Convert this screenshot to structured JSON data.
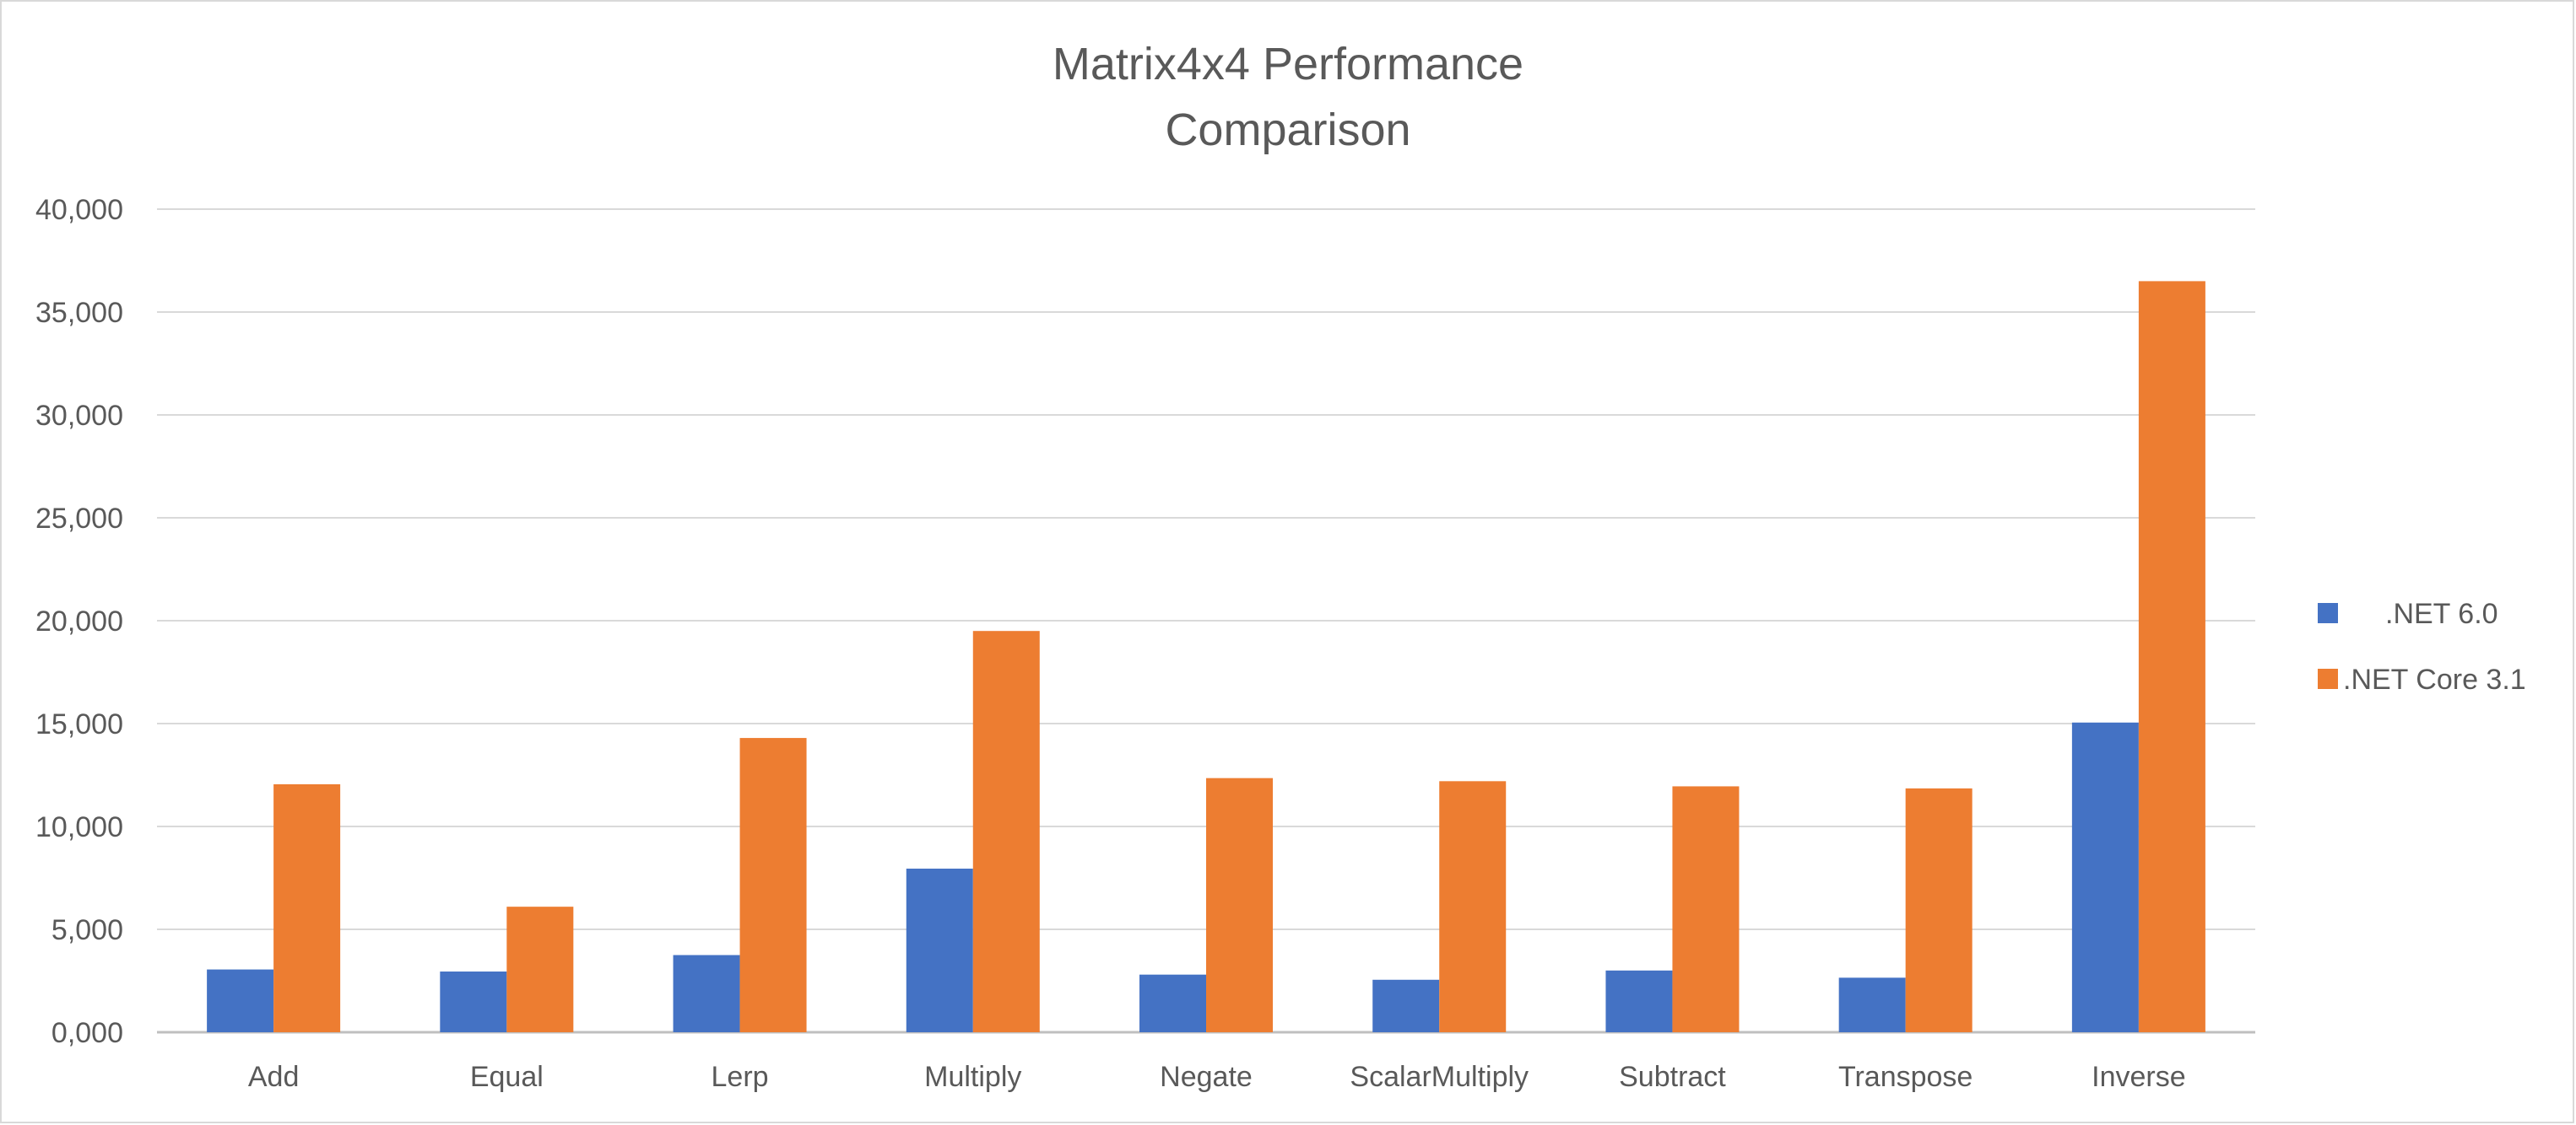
{
  "chart_data": {
    "type": "bar",
    "title_lines": [
      "Matrix4x4 Performance",
      "Comparison"
    ],
    "xlabel": "",
    "ylabel": "",
    "categories": [
      "Add",
      "Equal",
      "Lerp",
      "Multiply",
      "Negate",
      "ScalarMultiply",
      "Subtract",
      "Transpose",
      "Inverse"
    ],
    "series": [
      {
        "name": ".NET 6.0",
        "color": "#4472C4",
        "values": [
          3050,
          2950,
          3750,
          7950,
          2800,
          2550,
          3000,
          2650,
          15050
        ]
      },
      {
        "name": ".NET Core 3.1",
        "color": "#ED7D31",
        "values": [
          12050,
          6100,
          14300,
          19500,
          12350,
          12200,
          11950,
          11850,
          36500
        ]
      }
    ],
    "ylim": [
      0,
      40000
    ],
    "yticks": [
      0,
      5000,
      10000,
      15000,
      20000,
      25000,
      30000,
      35000,
      40000
    ],
    "ytick_labels": [
      "0,000",
      "5,000",
      "10,000",
      "15,000",
      "20,000",
      "25,000",
      "30,000",
      "35,000",
      "40,000"
    ],
    "grid": true,
    "legend_position": "right"
  }
}
